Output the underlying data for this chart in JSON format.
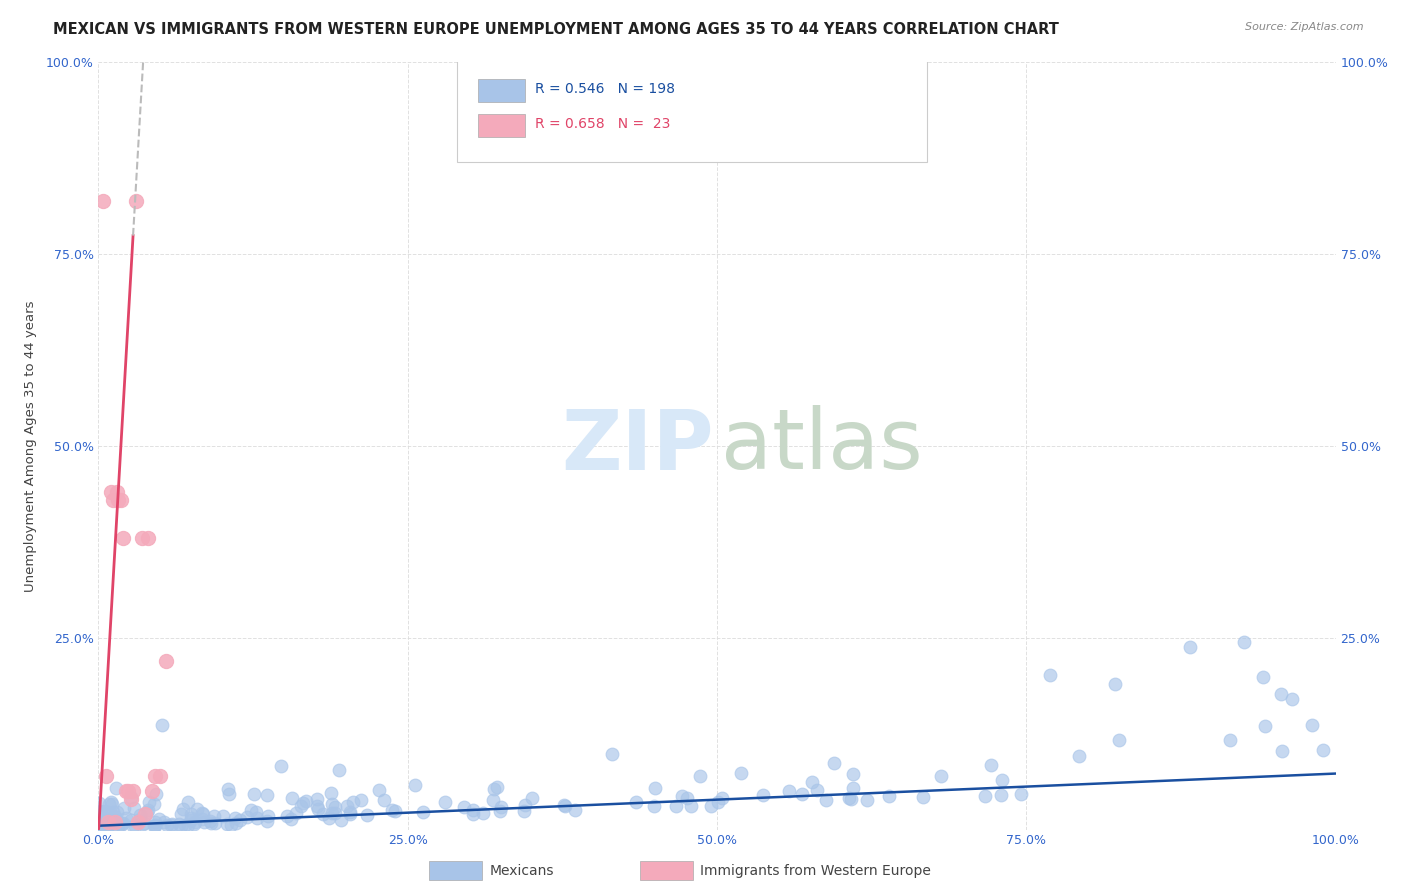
{
  "title": "MEXICAN VS IMMIGRANTS FROM WESTERN EUROPE UNEMPLOYMENT AMONG AGES 35 TO 44 YEARS CORRELATION CHART",
  "source": "Source: ZipAtlas.com",
  "ylabel": "Unemployment Among Ages 35 to 44 years",
  "xlim": [
    0.0,
    1.0
  ],
  "ylim": [
    0.0,
    1.0
  ],
  "xtick_labels": [
    "0.0%",
    "25.0%",
    "50.0%",
    "75.0%",
    "100.0%"
  ],
  "xtick_positions": [
    0.0,
    0.25,
    0.5,
    0.75,
    1.0
  ],
  "ytick_labels": [
    "",
    "25.0%",
    "50.0%",
    "75.0%",
    "100.0%"
  ],
  "ytick_positions": [
    0.0,
    0.25,
    0.5,
    0.75,
    1.0
  ],
  "blue_R": 0.546,
  "blue_N": 198,
  "pink_R": 0.658,
  "pink_N": 23,
  "blue_scatter_color": "#A8C4E8",
  "pink_scatter_color": "#F4AABB",
  "blue_line_color": "#1A4FA0",
  "pink_line_color": "#E04468",
  "watermark_zip_color": "#D8E8F8",
  "watermark_atlas_color": "#C8D8C8",
  "grid_color": "#DDDDDD",
  "bg_color": "#FFFFFF",
  "title_color": "#222222",
  "tick_color": "#3366CC",
  "label_color": "#444444",
  "title_fontsize": 10.5,
  "tick_fontsize": 9,
  "source_fontsize": 8,
  "ylabel_fontsize": 9.5,
  "legend_label_blue": "Mexicans",
  "legend_label_pink": "Immigrants from Western Europe",
  "pink_x": [
    0.004,
    0.006,
    0.008,
    0.01,
    0.012,
    0.013,
    0.015,
    0.016,
    0.018,
    0.02,
    0.022,
    0.024,
    0.026,
    0.028,
    0.03,
    0.032,
    0.035,
    0.038,
    0.04,
    0.043,
    0.046,
    0.05,
    0.055
  ],
  "pink_y": [
    0.82,
    0.07,
    0.01,
    0.44,
    0.43,
    0.01,
    0.44,
    0.43,
    0.43,
    0.38,
    0.05,
    0.05,
    0.04,
    0.05,
    0.82,
    0.01,
    0.38,
    0.02,
    0.38,
    0.05,
    0.07,
    0.07,
    0.22
  ]
}
